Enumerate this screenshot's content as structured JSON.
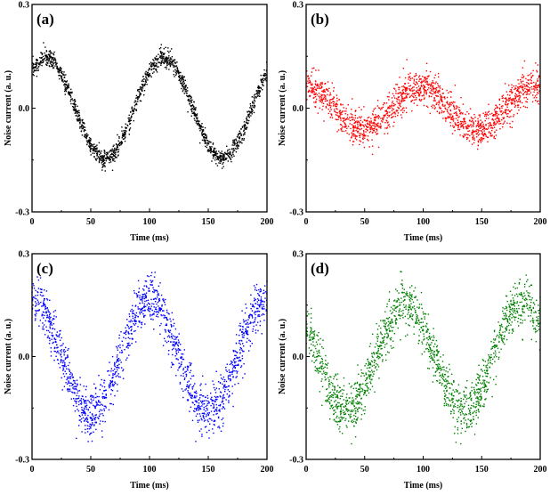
{
  "chart_data": [
    {
      "type": "scatter",
      "panel_label": "(a)",
      "color": "#000000",
      "xlabel": "Time (ms)",
      "ylabel": "Noise current (a. u.)",
      "xlim": [
        0,
        200
      ],
      "ylim": [
        -0.3,
        0.3
      ],
      "xticks": [
        "0",
        "50",
        "100",
        "150",
        "200"
      ],
      "yticks": [
        "0.3",
        "0.0",
        "-0.3"
      ],
      "noise_std": 0.012,
      "x": [
        0,
        10,
        20,
        30,
        40,
        50,
        60,
        70,
        80,
        90,
        100,
        110,
        120,
        130,
        140,
        150,
        160,
        170,
        180,
        190,
        200
      ],
      "y": [
        0.109,
        0.149,
        0.131,
        0.064,
        -0.028,
        -0.109,
        -0.149,
        -0.131,
        -0.064,
        0.028,
        0.109,
        0.149,
        0.131,
        0.064,
        -0.028,
        -0.109,
        -0.149,
        -0.131,
        -0.064,
        0.028,
        0.109
      ]
    },
    {
      "type": "scatter",
      "panel_label": "(b)",
      "color": "#ff0000",
      "xlabel": "Time (ms)",
      "ylabel": "Noise current (a. u.)",
      "xlim": [
        0,
        200
      ],
      "ylim": [
        -0.3,
        0.3
      ],
      "xticks": [
        "0",
        "50",
        "100",
        "150",
        "200"
      ],
      "yticks": [
        "0.3",
        "0.0",
        "-0.3"
      ],
      "noise_std": 0.025,
      "x": [
        0,
        10,
        20,
        30,
        40,
        50,
        60,
        70,
        80,
        90,
        100,
        110,
        120,
        130,
        140,
        150,
        160,
        170,
        180,
        190,
        200
      ],
      "y": [
        0.065,
        0.052,
        0.018,
        -0.024,
        -0.055,
        -0.065,
        -0.048,
        -0.012,
        0.029,
        0.058,
        0.064,
        0.043,
        0.005,
        -0.035,
        -0.061,
        -0.062,
        -0.04,
        0.001,
        0.04,
        0.063,
        0.06
      ]
    },
    {
      "type": "scatter",
      "panel_label": "(c)",
      "color": "#0000ff",
      "xlabel": "Time (ms)",
      "ylabel": "Noise current (a. u.)",
      "xlim": [
        0,
        200
      ],
      "ylim": [
        -0.3,
        0.3
      ],
      "xticks": [
        "0",
        "50",
        "100",
        "150",
        "200"
      ],
      "yticks": [
        "0.3",
        "0.0",
        "-0.3"
      ],
      "noise_std": 0.035,
      "x": [
        0,
        10,
        20,
        30,
        40,
        50,
        60,
        70,
        80,
        90,
        100,
        110,
        120,
        130,
        140,
        150,
        160,
        170,
        180,
        190,
        200
      ],
      "y": [
        0.17,
        0.138,
        0.053,
        -0.053,
        -0.138,
        -0.17,
        -0.138,
        -0.053,
        0.053,
        0.138,
        0.17,
        0.138,
        0.053,
        -0.053,
        -0.138,
        -0.17,
        -0.138,
        -0.053,
        0.053,
        0.138,
        0.17
      ]
    },
    {
      "type": "scatter",
      "panel_label": "(d)",
      "color": "#008000",
      "xlabel": "Time (ms)",
      "ylabel": "Noise current (a. u.)",
      "xlim": [
        0,
        200
      ],
      "ylim": [
        -0.3,
        0.3
      ],
      "xticks": [
        "0",
        "50",
        "100",
        "150",
        "200"
      ],
      "yticks": [
        "0.3",
        "0.0",
        "-0.3"
      ],
      "noise_std": 0.035,
      "x": [
        0,
        10,
        20,
        30,
        40,
        50,
        60,
        70,
        80,
        90,
        100,
        110,
        120,
        130,
        140,
        150,
        160,
        170,
        180,
        190,
        200
      ],
      "y": [
        0.094,
        0.0,
        -0.094,
        -0.152,
        -0.152,
        -0.094,
        0.0,
        0.094,
        0.152,
        0.152,
        0.094,
        0.0,
        -0.094,
        -0.152,
        -0.152,
        -0.094,
        0.0,
        0.094,
        0.152,
        0.152,
        0.094
      ]
    }
  ]
}
